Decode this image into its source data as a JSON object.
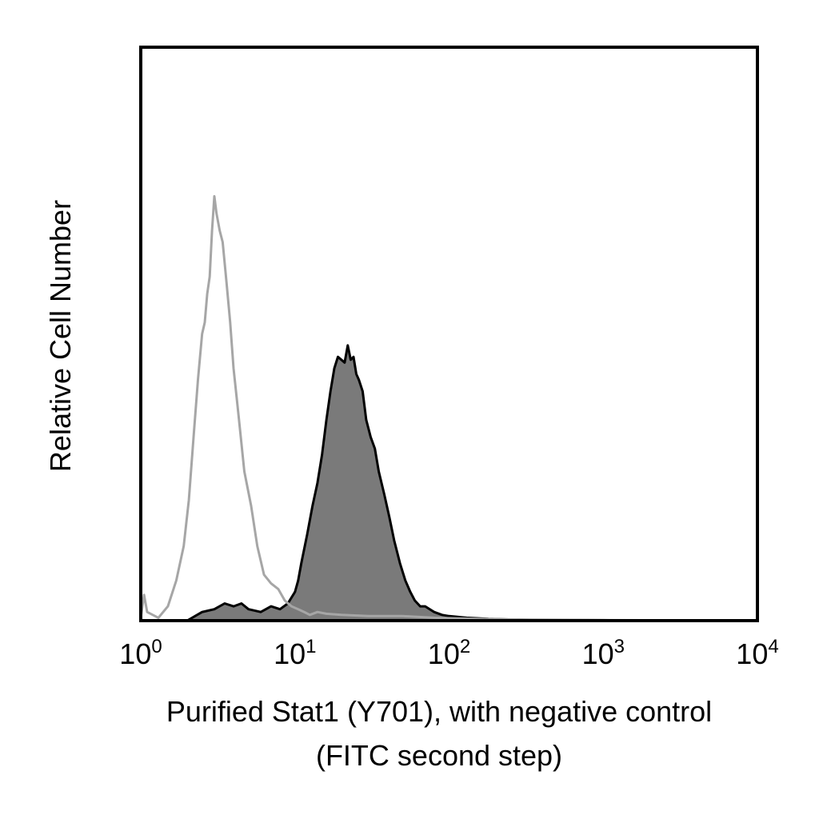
{
  "chart_data": {
    "type": "area",
    "xlabel_lines": [
      "Purified Stat1 (Y701), with negative control",
      "(FITC second step)"
    ],
    "ylabel": "Relative Cell Number",
    "x_scale": "log",
    "xlim": [
      1,
      10000
    ],
    "ylim": [
      0,
      100
    ],
    "grid": false,
    "x_ticks": [
      {
        "value": 1,
        "base": "10",
        "exp": "0"
      },
      {
        "value": 10,
        "base": "10",
        "exp": "1"
      },
      {
        "value": 100,
        "base": "10",
        "exp": "2"
      },
      {
        "value": 1000,
        "base": "10",
        "exp": "3"
      },
      {
        "value": 10000,
        "base": "10",
        "exp": "4"
      }
    ],
    "series": [
      {
        "style": "outline",
        "color": "#a6a6a6",
        "x": [
          1.0,
          1.05,
          1.1,
          1.3,
          1.5,
          1.7,
          1.9,
          2.05,
          2.2,
          2.35,
          2.5,
          2.6,
          2.7,
          2.8,
          2.9,
          3.0,
          3.1,
          3.25,
          3.4,
          3.6,
          3.8,
          4.0,
          4.3,
          4.7,
          5.2,
          5.7,
          6.3,
          7.0,
          7.8,
          8.6,
          9.5,
          10.5,
          11.5,
          12.5,
          14,
          16,
          20,
          30,
          50,
          80,
          150,
          300,
          1000,
          10000
        ],
        "values": [
          0.5,
          4.5,
          1.5,
          0.5,
          2.5,
          7,
          13,
          21,
          32,
          42,
          50,
          52,
          57,
          60,
          68,
          74,
          71,
          68,
          66,
          59,
          52,
          44,
          36,
          26,
          20,
          13,
          8,
          6.5,
          5.5,
          3.5,
          2.5,
          2,
          1.5,
          1,
          1.5,
          1.2,
          1,
          0.8,
          0.8,
          0.5,
          0.3,
          0.2,
          0.1,
          0
        ]
      },
      {
        "style": "filled",
        "color": "#7a7a7a",
        "x": [
          1.0,
          2.0,
          2.5,
          3.0,
          3.5,
          4.0,
          4.5,
          5.0,
          6.0,
          7.0,
          8.0,
          9.0,
          10.0,
          10.5,
          11.0,
          12.0,
          13.0,
          14.0,
          15.0,
          16.0,
          17.0,
          18.0,
          19.0,
          20.0,
          21.0,
          22.0,
          23.0,
          24.0,
          25.0,
          26.0,
          27.5,
          29.0,
          31.0,
          33.0,
          35.0,
          38.0,
          41.0,
          44.0,
          48.0,
          52.0,
          56.0,
          60.0,
          65.0,
          70.0,
          80.0,
          90.0,
          100.0,
          130.0,
          180.0,
          250.0,
          400.0,
          10000.0
        ],
        "values": [
          0,
          0,
          1.5,
          2,
          3,
          2.5,
          3,
          2,
          1.5,
          2.5,
          2,
          3,
          5,
          7,
          10,
          15,
          20,
          24,
          29,
          35,
          40,
          44,
          46,
          45.5,
          45,
          48,
          45.5,
          46,
          43,
          42,
          40,
          35,
          32,
          30,
          26,
          22,
          18,
          14,
          10,
          7,
          5,
          3.5,
          2.5,
          2.5,
          1.5,
          1,
          0.8,
          0.5,
          0.3,
          0.2,
          0.1,
          0
        ]
      }
    ]
  }
}
